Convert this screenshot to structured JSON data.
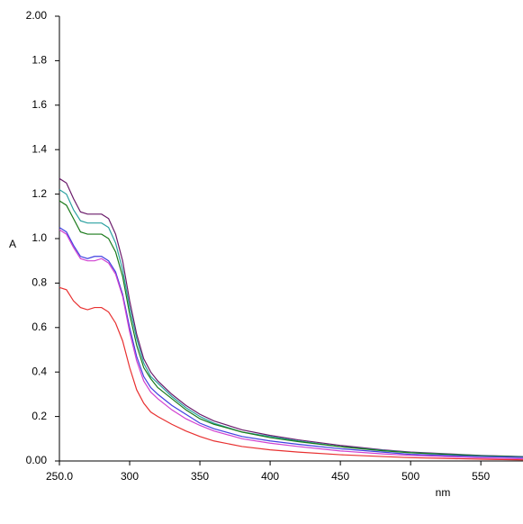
{
  "chart_data": {
    "type": "line",
    "x_label": "nm",
    "y_label": "A",
    "x": [
      250,
      255,
      260,
      265,
      270,
      275,
      280,
      285,
      290,
      295,
      300,
      305,
      310,
      315,
      320,
      330,
      340,
      350,
      360,
      380,
      400,
      420,
      450,
      480,
      500,
      550,
      580
    ],
    "series": [
      {
        "color": "#6a1a6a",
        "values": [
          1.27,
          1.25,
          1.18,
          1.12,
          1.11,
          1.11,
          1.11,
          1.09,
          1.02,
          0.9,
          0.72,
          0.57,
          0.46,
          0.4,
          0.36,
          0.3,
          0.25,
          0.21,
          0.18,
          0.14,
          0.115,
          0.095,
          0.07,
          0.05,
          0.04,
          0.025,
          0.02
        ]
      },
      {
        "color": "#2aa0a0",
        "values": [
          1.22,
          1.2,
          1.13,
          1.08,
          1.07,
          1.07,
          1.07,
          1.05,
          0.98,
          0.86,
          0.69,
          0.55,
          0.44,
          0.38,
          0.35,
          0.29,
          0.24,
          0.2,
          0.17,
          0.13,
          0.11,
          0.09,
          0.065,
          0.048,
          0.038,
          0.024,
          0.019
        ]
      },
      {
        "color": "#1a7a1a",
        "values": [
          1.17,
          1.15,
          1.09,
          1.03,
          1.02,
          1.02,
          1.02,
          1.0,
          0.94,
          0.83,
          0.66,
          0.52,
          0.42,
          0.37,
          0.33,
          0.28,
          0.23,
          0.19,
          0.165,
          0.13,
          0.105,
          0.087,
          0.064,
          0.046,
          0.037,
          0.023,
          0.018
        ]
      },
      {
        "color": "#4040e0",
        "values": [
          1.05,
          1.03,
          0.97,
          0.92,
          0.91,
          0.92,
          0.92,
          0.9,
          0.85,
          0.75,
          0.6,
          0.47,
          0.38,
          0.33,
          0.3,
          0.25,
          0.21,
          0.17,
          0.145,
          0.11,
          0.09,
          0.075,
          0.055,
          0.04,
          0.03,
          0.02,
          0.016
        ]
      },
      {
        "color": "#d040d0",
        "values": [
          1.04,
          1.02,
          0.96,
          0.91,
          0.9,
          0.9,
          0.91,
          0.89,
          0.84,
          0.74,
          0.58,
          0.45,
          0.36,
          0.31,
          0.28,
          0.23,
          0.19,
          0.16,
          0.135,
          0.1,
          0.08,
          0.065,
          0.045,
          0.032,
          0.025,
          0.014,
          0.01
        ]
      },
      {
        "color": "#e83030",
        "values": [
          0.78,
          0.77,
          0.72,
          0.69,
          0.68,
          0.69,
          0.69,
          0.67,
          0.62,
          0.54,
          0.42,
          0.32,
          0.26,
          0.22,
          0.2,
          0.165,
          0.135,
          0.11,
          0.09,
          0.065,
          0.05,
          0.04,
          0.028,
          0.02,
          0.015,
          0.008,
          0.005
        ]
      }
    ],
    "xlim": [
      250,
      580
    ],
    "xticks": [
      {
        "value": 250,
        "label": "250.0"
      },
      300,
      350,
      400,
      450,
      500,
      550
    ],
    "ylim": [
      0,
      2
    ],
    "yticks": [
      {
        "value": 0,
        "label": "0.00"
      },
      0.2,
      0.4,
      0.6,
      0.8,
      {
        "value": 1,
        "label": "1.0"
      },
      1.2,
      1.4,
      1.6,
      1.8,
      {
        "value": 2,
        "label": "2.00"
      }
    ],
    "grid": false
  }
}
